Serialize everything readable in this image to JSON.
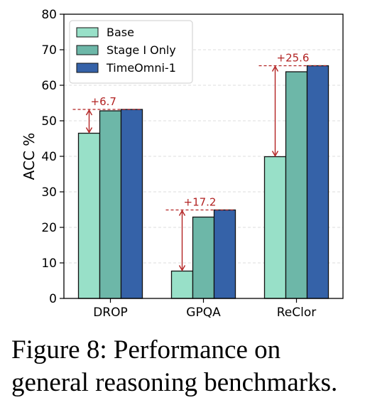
{
  "chart_data": {
    "type": "bar",
    "categories": [
      "DROP",
      "GPQA",
      "ReClor"
    ],
    "series": [
      {
        "name": "Base",
        "values": [
          46.5,
          7.7,
          39.9
        ],
        "color": "#98e0c8"
      },
      {
        "name": "Stage I Only",
        "values": [
          52.8,
          22.9,
          63.8
        ],
        "color": "#6db7a8"
      },
      {
        "name": "TimeOmni-1",
        "values": [
          53.2,
          24.9,
          65.5
        ],
        "color": "#3562a8"
      }
    ],
    "ylabel": "ACC %",
    "xlabel": "",
    "ylim": [
      0,
      80
    ],
    "yticks": [
      0,
      10,
      20,
      30,
      40,
      50,
      60,
      70,
      80
    ],
    "grid": true,
    "legend_position": "top-left",
    "annotations": [
      {
        "category": "DROP",
        "from": 46.5,
        "to": 53.2,
        "label": "+6.7",
        "color": "#b22222"
      },
      {
        "category": "GPQA",
        "from": 7.7,
        "to": 24.9,
        "label": "+17.2",
        "color": "#b22222"
      },
      {
        "category": "ReClor",
        "from": 39.9,
        "to": 65.5,
        "label": "+25.6",
        "color": "#b22222"
      }
    ]
  },
  "caption": "Figure 8: Performance on general reasoning benchmarks."
}
